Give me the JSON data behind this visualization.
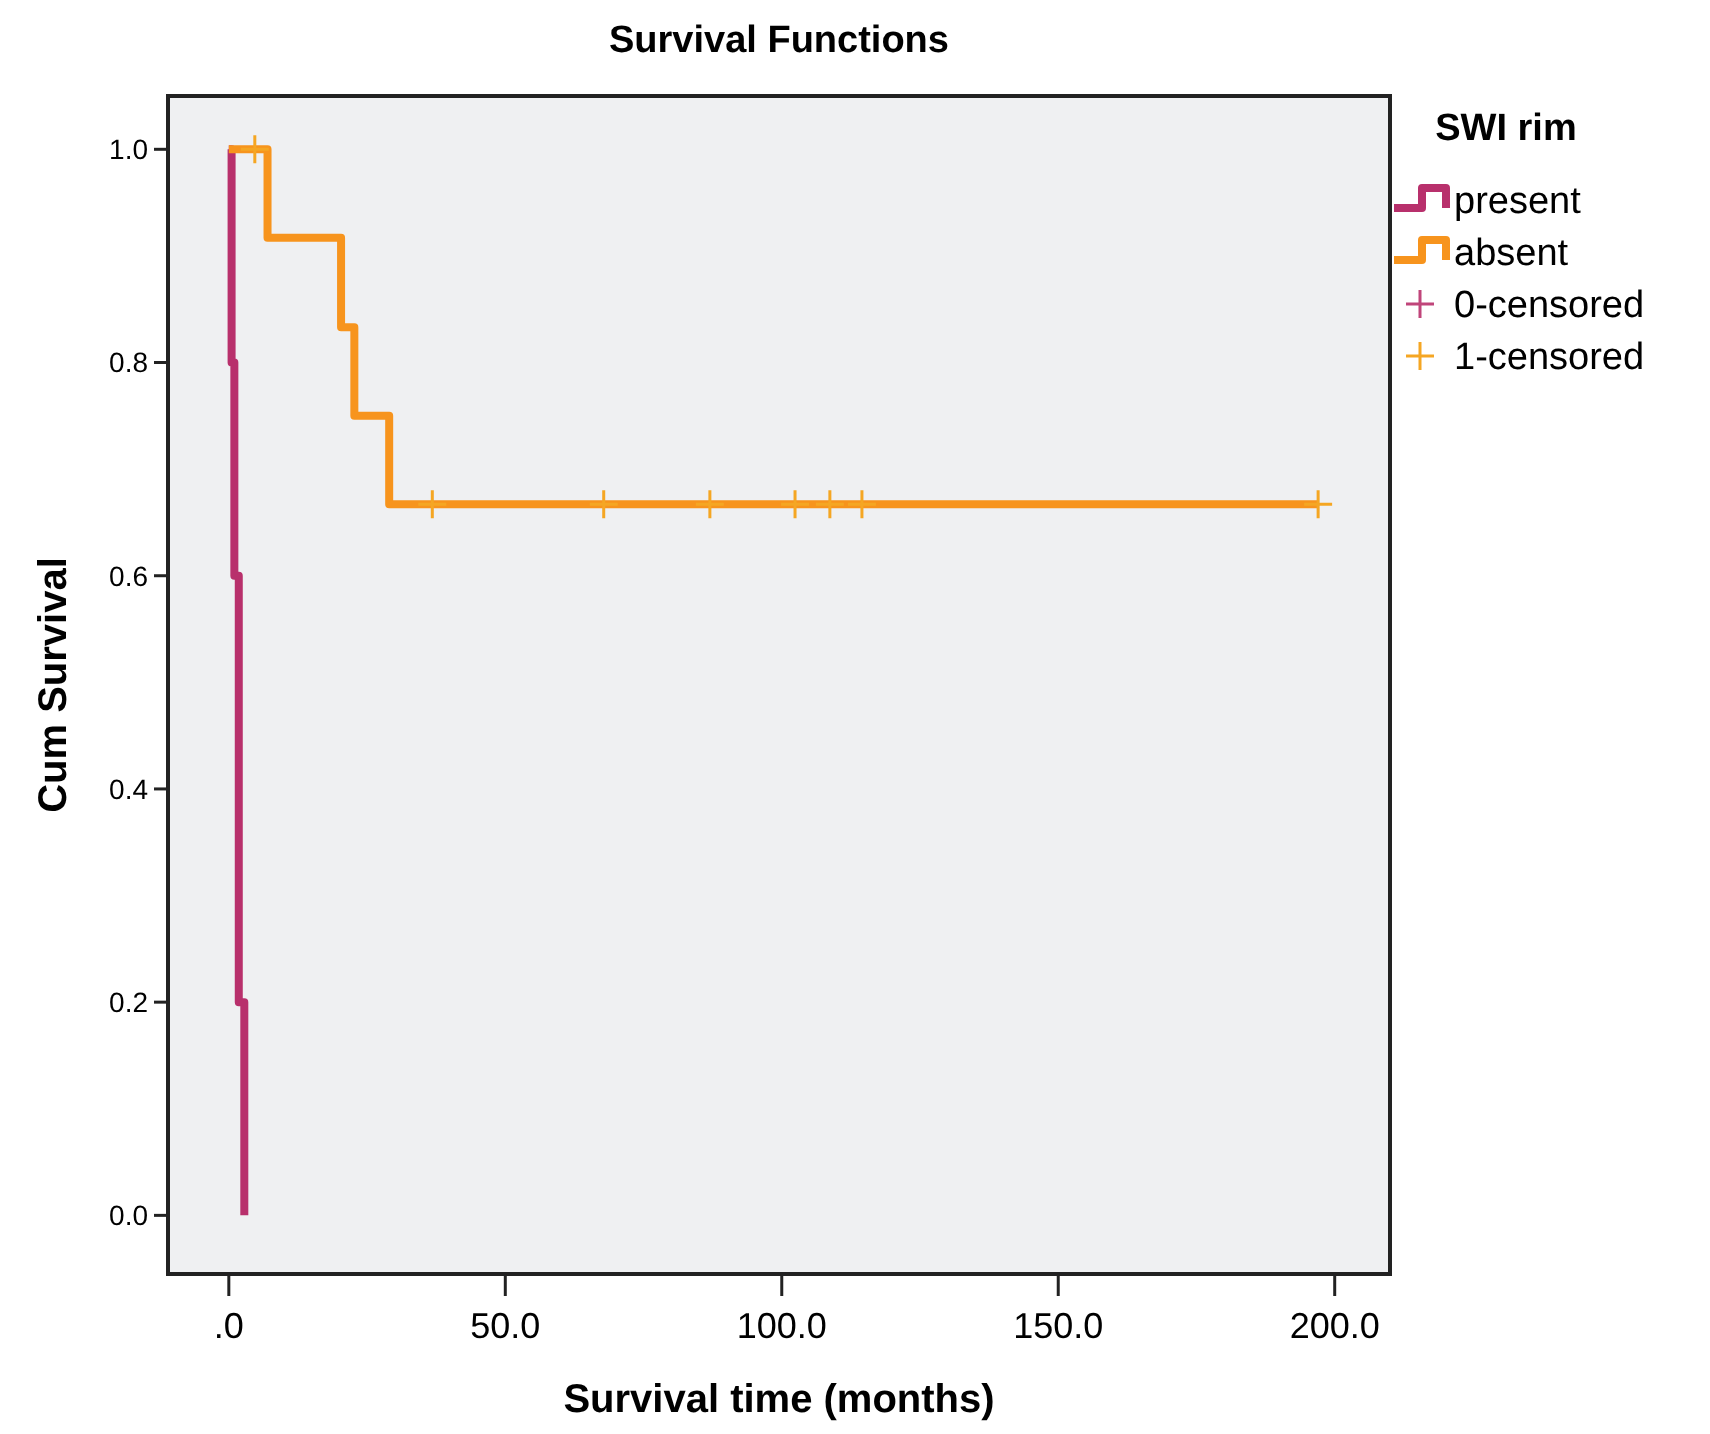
{
  "chart_data": {
    "type": "step",
    "title": "Survival Functions",
    "xlabel": "Survival time (months)",
    "ylabel": "Cum Survival",
    "legend_title": "SWI rim",
    "legend": "right",
    "grid": false,
    "xlim": [
      -11,
      210
    ],
    "xticks": [
      {
        "value": 0,
        "label": ".0"
      },
      {
        "value": 50,
        "label": "50.0"
      },
      {
        "value": 100,
        "label": "100.0"
      },
      {
        "value": 150,
        "label": "150.0"
      },
      {
        "value": 200,
        "label": "200.0"
      }
    ],
    "ylim": [
      -0.055,
      1.05
    ],
    "yticks": [
      {
        "value": 0,
        "label": "0.0"
      },
      {
        "value": 0.2,
        "label": "0.2"
      },
      {
        "value": 0.4,
        "label": "0.4"
      },
      {
        "value": 0.6,
        "label": "0.6"
      },
      {
        "value": 0.8,
        "label": "0.8"
      },
      {
        "value": 1,
        "label": "1.0"
      }
    ],
    "series": [
      {
        "name": "present",
        "color": "#b8306c",
        "x": [
          0,
          0.5,
          1,
          1.8,
          2.8
        ],
        "values": [
          1,
          0.8,
          0.6,
          0.2,
          0
        ]
      },
      {
        "name": "absent",
        "color": "#f7941d",
        "x": [
          0,
          7,
          20.3,
          22.7,
          29,
          197
        ],
        "values": [
          1,
          0.917,
          0.833,
          0.75,
          0.667,
          0.667
        ]
      },
      {
        "name": "0-censored",
        "type": "scatter",
        "marker": "cross",
        "color": "#c0457a"
      },
      {
        "name": "1-censored",
        "type": "scatter",
        "marker": "cross",
        "color": "#f5a623",
        "x": [
          4.7,
          36.8,
          67.8,
          87,
          102.4,
          108.7,
          114.5,
          197
        ],
        "values": [
          1,
          0.667,
          0.667,
          0.667,
          0.667,
          0.667,
          0.667,
          0.667
        ]
      }
    ]
  }
}
